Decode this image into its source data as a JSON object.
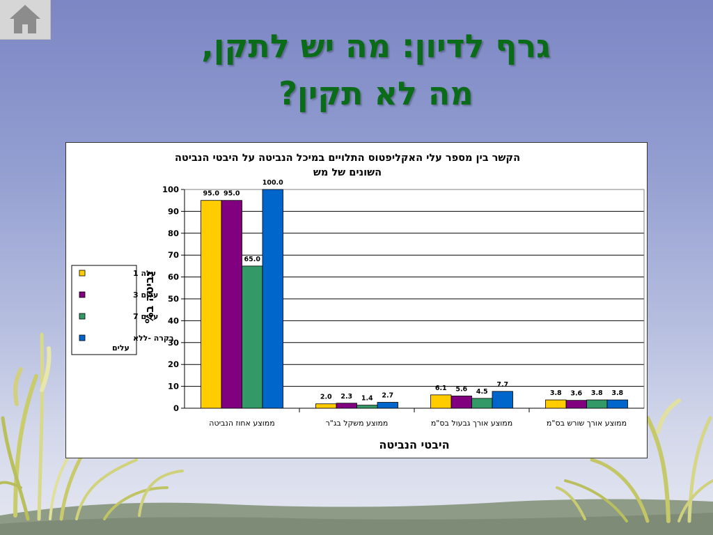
{
  "slide": {
    "title_line1": "גרף לדיון: מה יש לתקן,",
    "title_line2": "מה לא תקין?"
  },
  "home_icon": "home-icon",
  "colors": {
    "title": "#0a6b18",
    "series": [
      "#ffcc00",
      "#800080",
      "#339966",
      "#0066cc"
    ]
  },
  "chart_data": {
    "type": "bar",
    "title_lines": [
      "הקשר בין מספר עלי האקליפטוס התלויים במיכל הנביטה על היבטי הנביטה",
      "השונים של מש"
    ],
    "xlabel": "היבטי הנביטה",
    "ylabel": "נביטה ב%",
    "ylim": [
      0,
      100
    ],
    "yticks": [
      0,
      10,
      20,
      30,
      40,
      50,
      60,
      70,
      80,
      90,
      100
    ],
    "grid": true,
    "legend_position": "left",
    "categories": [
      "ממוצע אחוז הנביטה",
      "ממוצע משקל בג\"ר",
      "ממוצע אורך גבעול בס\"מ",
      "ממוצע אורך שורש בס\"מ"
    ],
    "series": [
      {
        "name": "עלה 1",
        "values": [
          95.0,
          2.0,
          6.1,
          3.8
        ]
      },
      {
        "name": "עלים 3",
        "values": [
          95.0,
          2.3,
          5.6,
          3.6
        ]
      },
      {
        "name": "עלים 7",
        "values": [
          65.0,
          1.4,
          4.5,
          3.8
        ]
      },
      {
        "name": "בקרה -ללא עלים",
        "values": [
          100.0,
          2.7,
          7.7,
          3.8
        ]
      }
    ]
  }
}
